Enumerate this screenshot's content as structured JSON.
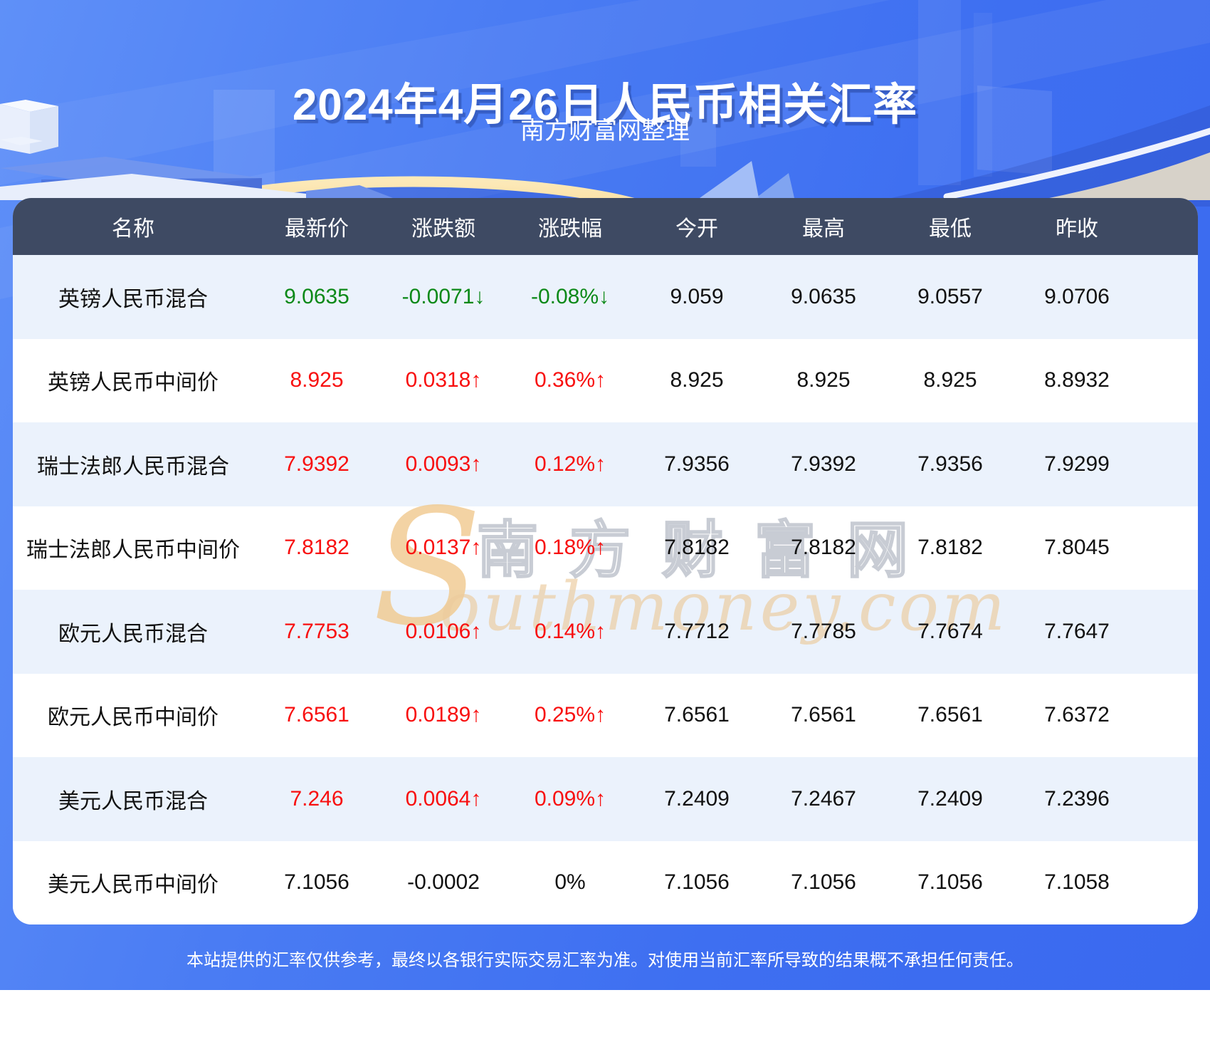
{
  "hero": {
    "title": "2024年4月26日人民币相关汇率",
    "subtitle": "南方财富网整理"
  },
  "table": {
    "columns": [
      "名称",
      "最新价",
      "涨跌额",
      "涨跌幅",
      "今开",
      "最高",
      "最低",
      "昨收"
    ],
    "rows": [
      {
        "name": "英镑人民币混合",
        "latest": "9.0635",
        "change": "-0.0071↓",
        "change_pct": "-0.08%↓",
        "open": "9.059",
        "high": "9.0635",
        "low": "9.0557",
        "prev_close": "9.0706",
        "trend": "down"
      },
      {
        "name": "英镑人民币中间价",
        "latest": "8.925",
        "change": "0.0318↑",
        "change_pct": "0.36%↑",
        "open": "8.925",
        "high": "8.925",
        "low": "8.925",
        "prev_close": "8.8932",
        "trend": "up"
      },
      {
        "name": "瑞士法郎人民币混合",
        "latest": "7.9392",
        "change": "0.0093↑",
        "change_pct": "0.12%↑",
        "open": "7.9356",
        "high": "7.9392",
        "low": "7.9356",
        "prev_close": "7.9299",
        "trend": "up"
      },
      {
        "name": "瑞士法郎人民币中间价",
        "latest": "7.8182",
        "change": "0.0137↑",
        "change_pct": "0.18%↑",
        "open": "7.8182",
        "high": "7.8182",
        "low": "7.8182",
        "prev_close": "7.8045",
        "trend": "up"
      },
      {
        "name": "欧元人民币混合",
        "latest": "7.7753",
        "change": "0.0106↑",
        "change_pct": "0.14%↑",
        "open": "7.7712",
        "high": "7.7785",
        "low": "7.7674",
        "prev_close": "7.7647",
        "trend": "up"
      },
      {
        "name": "欧元人民币中间价",
        "latest": "7.6561",
        "change": "0.0189↑",
        "change_pct": "0.25%↑",
        "open": "7.6561",
        "high": "7.6561",
        "low": "7.6561",
        "prev_close": "7.6372",
        "trend": "up"
      },
      {
        "name": "美元人民币混合",
        "latest": "7.246",
        "change": "0.0064↑",
        "change_pct": "0.09%↑",
        "open": "7.2409",
        "high": "7.2467",
        "low": "7.2409",
        "prev_close": "7.2396",
        "trend": "up"
      },
      {
        "name": "美元人民币中间价",
        "latest": "7.1056",
        "change": "-0.0002",
        "change_pct": "0%",
        "open": "7.1056",
        "high": "7.1056",
        "low": "7.1056",
        "prev_close": "7.1058",
        "trend": "flat"
      }
    ]
  },
  "watermark": {
    "initial": "S",
    "cn": "南方财富网",
    "en": "outhmoney.com"
  },
  "footer": {
    "disclaimer": "本站提供的汇率仅供参考，最终以各银行实际交易汇率为准。对使用当前汇率所导致的结果概不承担任何责任。"
  },
  "colors": {
    "up": "#f80f0f",
    "down": "#0c8918",
    "neutral": "#111111",
    "header_bg": "#3e4a63",
    "row_alt": "#ebf2fc",
    "footer_bg": "#4573ef",
    "gold": "#f4c878"
  }
}
